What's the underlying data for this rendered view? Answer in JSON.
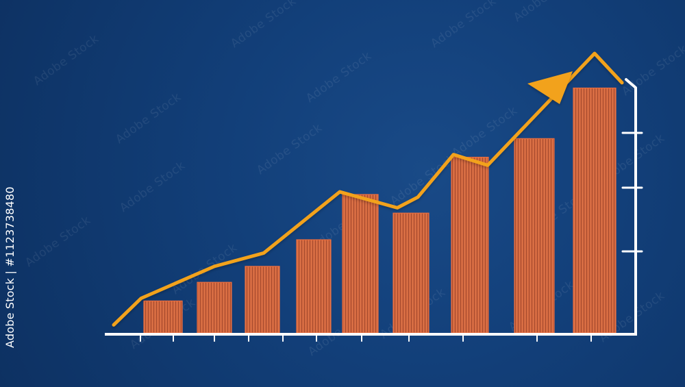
{
  "theme": {
    "background": "#123f79",
    "bar_fill": "#d8673e",
    "bar_stripe": "#a84e2e",
    "line_color": "#f2a21a",
    "axis_color": "#ffffff"
  },
  "watermark": {
    "id_text": "Adobe Stock | #1123738480",
    "repeat_text": "Adobe Stock"
  },
  "chart_data": {
    "type": "bar",
    "x_positions": [
      238,
      313,
      383,
      458,
      526,
      600,
      686,
      780,
      868
    ],
    "bar_widths": [
      56,
      50,
      50,
      50,
      52,
      52,
      54,
      58,
      62
    ],
    "values": [
      12,
      19,
      25,
      35,
      52,
      45,
      66,
      73,
      92
    ],
    "ylim": [
      0,
      105
    ],
    "trend_line": {
      "x": [
        166,
        206,
        313,
        385,
        496,
        580,
        610,
        662,
        712,
        868,
        908
      ],
      "values": [
        3,
        13,
        25,
        30,
        53,
        47,
        51,
        67,
        63,
        105,
        94
      ]
    },
    "grid": false,
    "legend": "none"
  }
}
